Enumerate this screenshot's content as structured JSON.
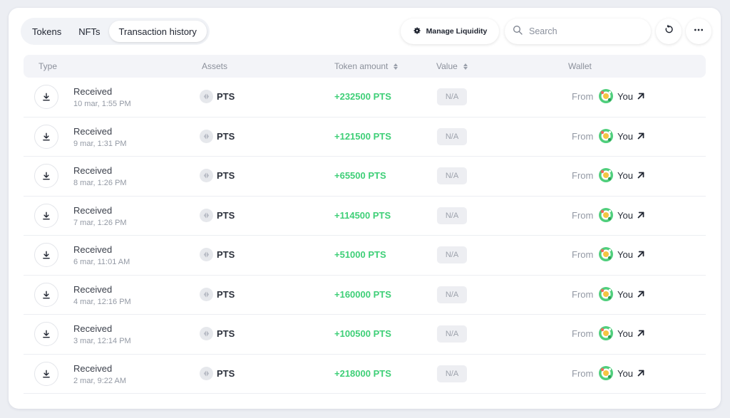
{
  "tabs": [
    {
      "label": "Tokens",
      "active": false
    },
    {
      "label": "NFTs",
      "active": false
    },
    {
      "label": "Transaction history",
      "active": true
    }
  ],
  "toolbar": {
    "manage_liquidity_label": "Manage Liquidity",
    "search_placeholder": "Search"
  },
  "table": {
    "headers": {
      "type": "Type",
      "assets": "Assets",
      "token_amount": "Token amount",
      "value": "Value",
      "wallet": "Wallet"
    },
    "rows": [
      {
        "type": "Received",
        "date": "10 mar, 1:55 PM",
        "asset": "PTS",
        "amount": "+232500 PTS",
        "value": "N/A",
        "from": "From",
        "wallet": "You"
      },
      {
        "type": "Received",
        "date": "9 mar, 1:31 PM",
        "asset": "PTS",
        "amount": "+121500 PTS",
        "value": "N/A",
        "from": "From",
        "wallet": "You"
      },
      {
        "type": "Received",
        "date": "8 mar, 1:26 PM",
        "asset": "PTS",
        "amount": "+65500 PTS",
        "value": "N/A",
        "from": "From",
        "wallet": "You"
      },
      {
        "type": "Received",
        "date": "7 mar, 1:26 PM",
        "asset": "PTS",
        "amount": "+114500 PTS",
        "value": "N/A",
        "from": "From",
        "wallet": "You"
      },
      {
        "type": "Received",
        "date": "6 mar, 11:01 AM",
        "asset": "PTS",
        "amount": "+51000 PTS",
        "value": "N/A",
        "from": "From",
        "wallet": "You"
      },
      {
        "type": "Received",
        "date": "4 mar, 12:16 PM",
        "asset": "PTS",
        "amount": "+160000 PTS",
        "value": "N/A",
        "from": "From",
        "wallet": "You"
      },
      {
        "type": "Received",
        "date": "3 mar, 12:14 PM",
        "asset": "PTS",
        "amount": "+100500 PTS",
        "value": "N/A",
        "from": "From",
        "wallet": "You"
      },
      {
        "type": "Received",
        "date": "2 mar, 9:22 AM",
        "asset": "PTS",
        "amount": "+218000 PTS",
        "value": "N/A",
        "from": "From",
        "wallet": "You"
      }
    ]
  },
  "colors": {
    "positive_amount": "#3ecf77",
    "muted_text": "#9399a4",
    "header_bg": "#f3f4f8"
  },
  "icons": {
    "liquidity": "gear-icon",
    "search": "search-icon",
    "refresh": "refresh-icon",
    "more": "more-horizontal-icon",
    "row_type": "download-icon",
    "asset": "token-icon",
    "wallet_avatar": "avatar-icon",
    "external": "arrow-up-right-icon"
  }
}
